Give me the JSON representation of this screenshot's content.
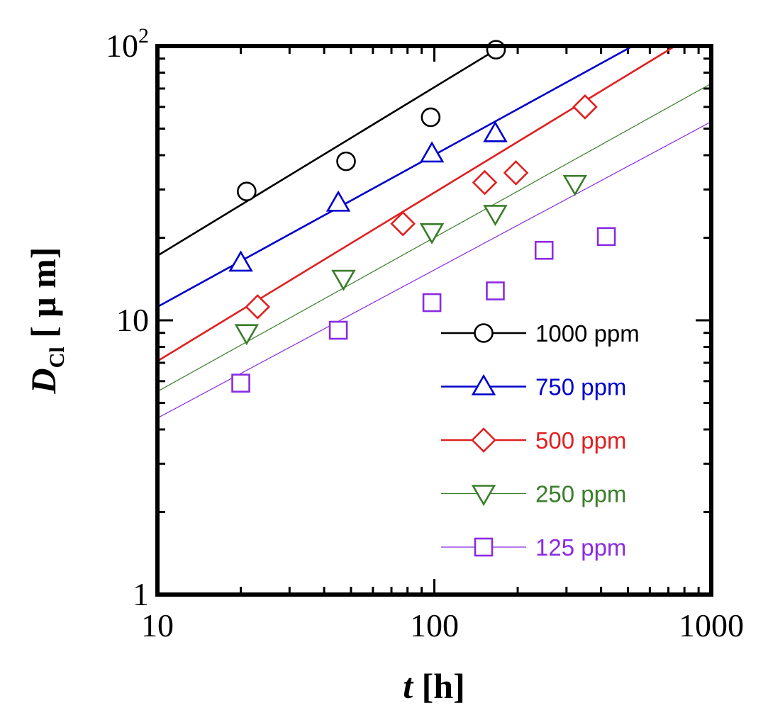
{
  "chart_data": {
    "type": "scatter",
    "xscale": "log",
    "yscale": "log",
    "xlim": [
      10,
      1000
    ],
    "ylim": [
      1,
      100
    ],
    "x_ticks": [
      "10",
      "100",
      "1000"
    ],
    "y_ticks": [
      "1",
      "10"
    ],
    "y_top_tick": {
      "base": "10",
      "exp": "2"
    },
    "xlabel": {
      "var": "t",
      "unit": " [h]"
    },
    "ylabel": {
      "var": "D",
      "sub": "Cl",
      "unit": " [ μ m]"
    },
    "legend_position": "lower-right",
    "series": [
      {
        "name": "1000 ppm",
        "color": "#000000",
        "marker": "circle",
        "line_width": 2.6,
        "points": [
          [
            21,
            29.5
          ],
          [
            48,
            38
          ],
          [
            97,
            55
          ],
          [
            167,
            97
          ]
        ],
        "fit": [
          [
            10,
            17.2
          ],
          [
            167,
            97
          ]
        ]
      },
      {
        "name": "750 ppm",
        "color": "#0000cc",
        "marker": "triangle-up",
        "line_width": 2.6,
        "points": [
          [
            20,
            16.2
          ],
          [
            45,
            26.8
          ],
          [
            98,
            40.5
          ],
          [
            166,
            48
          ]
        ],
        "fit": [
          [
            10,
            11.2
          ],
          [
            520,
            100
          ]
        ]
      },
      {
        "name": "500 ppm",
        "color": "#e02020",
        "marker": "diamond",
        "line_width": 2.6,
        "points": [
          [
            23,
            11.2
          ],
          [
            77,
            22.5
          ],
          [
            152,
            31.8
          ],
          [
            197,
            34.5
          ],
          [
            350,
            60
          ]
        ],
        "fit": [
          [
            10,
            7.1
          ],
          [
            740,
            100
          ]
        ]
      },
      {
        "name": "250 ppm",
        "color": "#3a7d2a",
        "marker": "triangle-down",
        "line_width": 1.2,
        "points": [
          [
            21,
            9.0
          ],
          [
            47,
            14.2
          ],
          [
            98,
            21.0
          ],
          [
            166,
            24.5
          ],
          [
            322,
            31.5
          ]
        ],
        "fit": [
          [
            10,
            5.5
          ],
          [
            1000,
            73
          ]
        ]
      },
      {
        "name": "125 ppm",
        "color": "#8a2be2",
        "marker": "square",
        "line_width": 1.2,
        "points": [
          [
            20,
            5.9
          ],
          [
            45,
            9.2
          ],
          [
            98,
            11.6
          ],
          [
            166,
            12.8
          ],
          [
            249,
            18.0
          ],
          [
            418,
            20.2
          ]
        ],
        "fit": [
          [
            10,
            4.4
          ],
          [
            1000,
            53
          ]
        ]
      }
    ]
  }
}
